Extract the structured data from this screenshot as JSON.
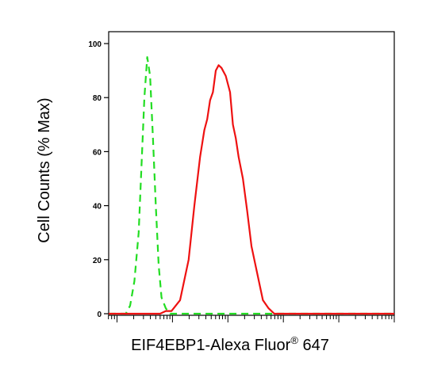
{
  "chart_data": {
    "type": "line",
    "title": "",
    "xlabel": {
      "text_before": "EIF4EBP1-Alexa Fluor",
      "superscript": "®",
      "text_after": " 647"
    },
    "ylabel": "Cell Counts (% Max)",
    "x_scale": "log",
    "x_tick_labels_shown": false,
    "ylim": [
      0,
      100
    ],
    "y_ticks": [
      0,
      20,
      40,
      60,
      80,
      100
    ],
    "grid": false,
    "legend": "none",
    "series": [
      {
        "color": "#22dd22",
        "dash": "dashed",
        "points": [
          [
            0.0,
            0
          ],
          [
            0.06,
            0
          ],
          [
            0.075,
            3
          ],
          [
            0.09,
            12
          ],
          [
            0.105,
            30
          ],
          [
            0.115,
            55
          ],
          [
            0.125,
            80
          ],
          [
            0.135,
            95
          ],
          [
            0.145,
            88
          ],
          [
            0.155,
            65
          ],
          [
            0.165,
            40
          ],
          [
            0.175,
            18
          ],
          [
            0.185,
            6
          ],
          [
            0.2,
            2
          ],
          [
            0.215,
            0
          ],
          [
            1.0,
            0
          ]
        ]
      },
      {
        "color": "#ee1111",
        "dash": "solid",
        "points": [
          [
            0.0,
            0
          ],
          [
            0.18,
            0
          ],
          [
            0.2,
            1
          ],
          [
            0.22,
            1
          ],
          [
            0.25,
            5
          ],
          [
            0.28,
            20
          ],
          [
            0.3,
            40
          ],
          [
            0.32,
            58
          ],
          [
            0.335,
            68
          ],
          [
            0.345,
            72
          ],
          [
            0.355,
            79
          ],
          [
            0.365,
            82
          ],
          [
            0.375,
            90
          ],
          [
            0.385,
            92
          ],
          [
            0.395,
            91
          ],
          [
            0.41,
            88
          ],
          [
            0.425,
            82
          ],
          [
            0.435,
            70
          ],
          [
            0.445,
            65
          ],
          [
            0.455,
            58
          ],
          [
            0.47,
            50
          ],
          [
            0.485,
            38
          ],
          [
            0.5,
            25
          ],
          [
            0.52,
            15
          ],
          [
            0.54,
            5
          ],
          [
            0.56,
            2
          ],
          [
            0.58,
            0
          ],
          [
            1.0,
            0
          ]
        ]
      }
    ]
  }
}
